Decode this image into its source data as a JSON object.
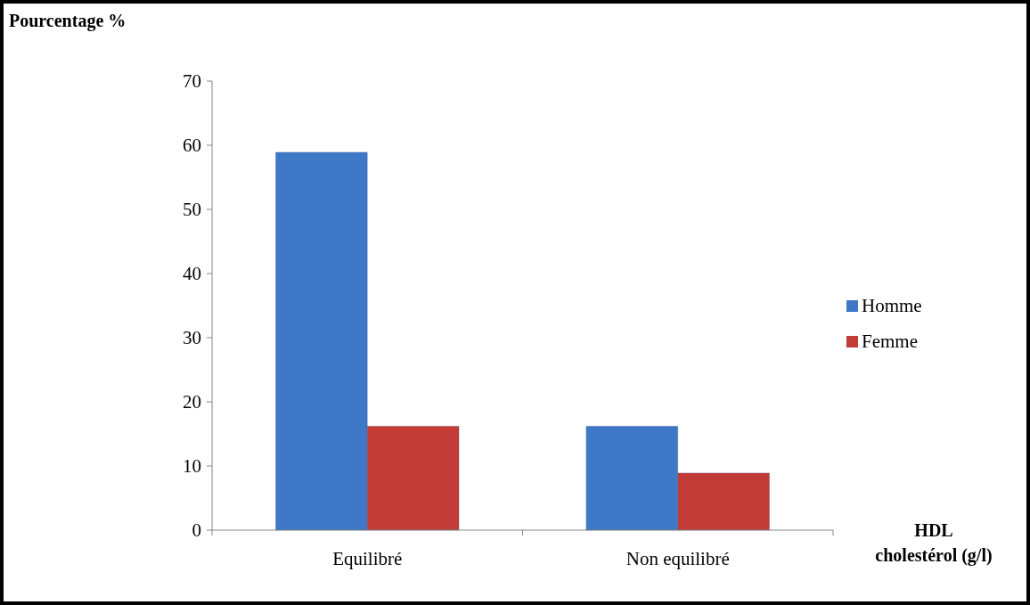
{
  "chart_data": {
    "type": "bar",
    "ylabel": "Pourcentage %",
    "xlabel": "HDL\ncholestérol (g/l)",
    "categories": [
      "Equilibré",
      "Non equilibré"
    ],
    "series": [
      {
        "name": "Homme",
        "color": "#3f78c6",
        "values": [
          58.9,
          16.2
        ]
      },
      {
        "name": "Femme",
        "color": "#c23b37",
        "values": [
          16.2,
          8.9
        ]
      }
    ],
    "ylim": [
      0,
      70
    ],
    "yticks": [
      0,
      10,
      20,
      30,
      40,
      50,
      60,
      70
    ],
    "grid": false,
    "legend": "right"
  }
}
